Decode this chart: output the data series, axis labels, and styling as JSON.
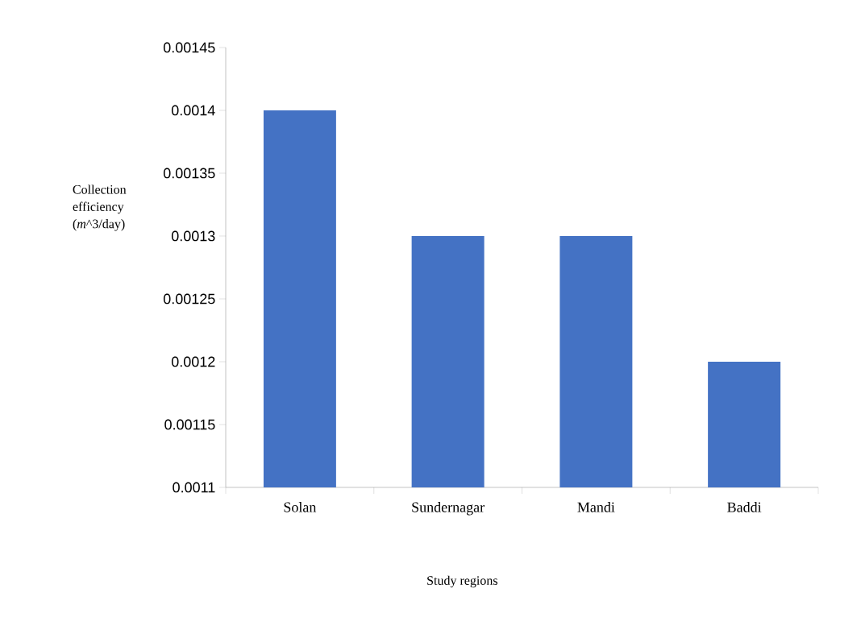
{
  "chart_data": {
    "type": "bar",
    "xlabel": "Study regions",
    "ylabel": "Collection efficiency (*m*^3/day)",
    "categories": [
      "Solan",
      "Sundernagar",
      "Mandi",
      "Baddi"
    ],
    "values": [
      0.0014,
      0.0013,
      0.0013,
      0.0012
    ],
    "color": "#4472c4",
    "ylim": [
      0.0011,
      0.00145
    ],
    "yticks": [
      0.0011,
      0.00115,
      0.0012,
      0.00125,
      0.0013,
      0.00135,
      0.0014,
      0.00145
    ]
  }
}
